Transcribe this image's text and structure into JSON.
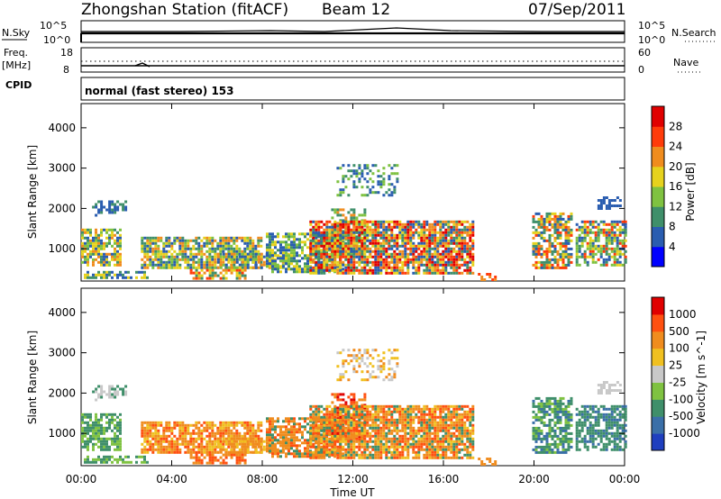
{
  "header": {
    "station": "Zhongshan Station (fitACF)",
    "beam": "Beam 12",
    "date": "07/Sep/2011"
  },
  "strip": {
    "nsky_label": "N.Sky",
    "nsearch_label": "N.Search",
    "freq_label_top": "Freq.",
    "freq_label_unit": "[MHz]",
    "nave_label": "Nave",
    "cpid_label": "CPID",
    "cpid_text": "normal (fast stereo) 153",
    "noise_ticks": [
      "10^5",
      "10^0"
    ],
    "freq_ticks": [
      "18",
      "8"
    ],
    "nave_ticks": [
      "60",
      "0"
    ]
  },
  "chart_data": [
    {
      "type": "heatmap",
      "name": "power-panel",
      "xlabel": "",
      "ylabel": "Slant Range [km]",
      "yticks": [
        "1000",
        "2000",
        "3000",
        "4000"
      ],
      "ylim": [
        200,
        4600
      ],
      "colorbar_label": "Power [dB]",
      "colorbar_ticks": [
        "28",
        "24",
        "20",
        "16",
        "12",
        "8",
        "4"
      ],
      "colorbar_colors": [
        "#0000ff",
        "#2a5db0",
        "#3f8f6a",
        "#7fc241",
        "#e6d21e",
        "#f08c1e",
        "#ff3b0a",
        "#e00000"
      ]
    },
    {
      "type": "heatmap",
      "name": "velocity-panel",
      "xlabel": "Time UT",
      "ylabel": "Slant Range [km]",
      "yticks": [
        "1000",
        "2000",
        "3000",
        "4000"
      ],
      "ylim": [
        200,
        4600
      ],
      "xticks": [
        "00:00",
        "04:00",
        "08:00",
        "12:00",
        "16:00",
        "20:00",
        "00:00"
      ],
      "colorbar_label": "Velocity [m s^-1]",
      "colorbar_ticks": [
        "1000",
        "500",
        "100",
        "25",
        "-25",
        "-100",
        "-500",
        "-1000"
      ],
      "colorbar_colors": [
        "#1f3fbf",
        "#3a6fa8",
        "#3f8f6a",
        "#7fc241",
        "#c8c8c8",
        "#f0c020",
        "#f08c1e",
        "#ff5010",
        "#e00000"
      ]
    }
  ]
}
